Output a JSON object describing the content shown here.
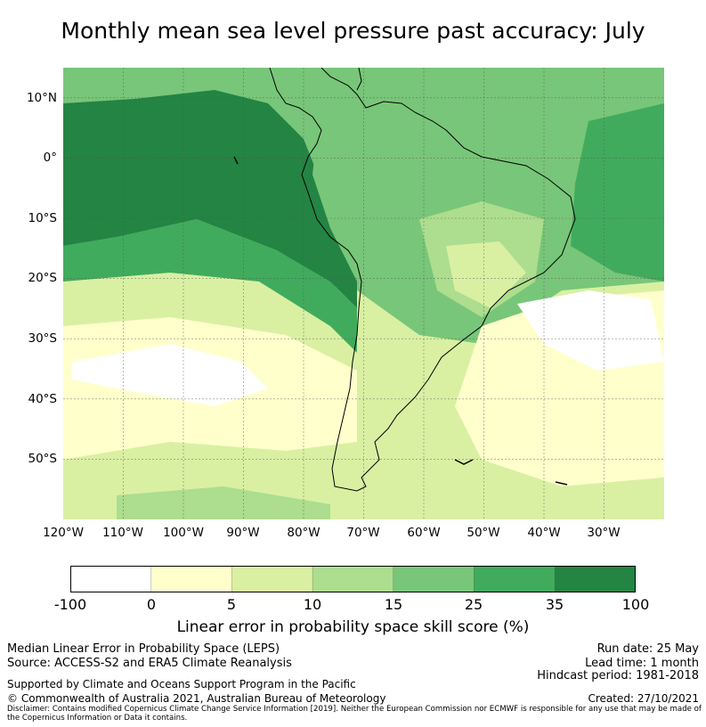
{
  "title": "Monthly mean sea level pressure past accuracy: July",
  "map": {
    "lat_labels": [
      "10°N",
      "0°",
      "10°S",
      "20°S",
      "30°S",
      "40°S",
      "50°S"
    ],
    "lon_labels": [
      "120°W",
      "110°W",
      "100°W",
      "90°W",
      "80°W",
      "70°W",
      "60°W",
      "50°W",
      "40°W",
      "30°W"
    ],
    "lat_values": [
      10,
      0,
      -10,
      -20,
      -30,
      -40,
      -50
    ],
    "lon_values": [
      -120,
      -110,
      -100,
      -90,
      -80,
      -70,
      -60,
      -50,
      -40,
      -30
    ],
    "extent": {
      "lon": [
        -120,
        -20
      ],
      "lat": [
        -60,
        15
      ]
    },
    "colors": {
      "-100_0": "#ffffff",
      "0_5": "#ffffcc",
      "5_10": "#d9f0a3",
      "10_15": "#addd8e",
      "15_25": "#78c679",
      "25_35": "#41ab5d",
      "35_100": "#238443"
    }
  },
  "colorbar": {
    "ticks": [
      "-100",
      "0",
      "5",
      "10",
      "15",
      "25",
      "35",
      "100"
    ],
    "colors": [
      "#ffffff",
      "#ffffcc",
      "#d9f0a3",
      "#addd8e",
      "#78c679",
      "#41ab5d",
      "#238443"
    ],
    "label": "Linear error in probability space skill score (%)"
  },
  "footer": {
    "line1": "Median Linear Error in Probability Space (LEPS)",
    "line2": "Source: ACCESS-S2 and ERA5 Climate Reanalysis",
    "line3": "Supported by Climate and Oceans Support Program in the Pacific",
    "line4": "© Commonwealth of Australia 2021, Australian Bureau of Meteorology",
    "run_date": "Run date: 25 May",
    "lead_time": "Lead time: 1 month",
    "hindcast": "Hindcast period: 1981-2018",
    "created": "Created: 27/10/2021",
    "disclaimer": "Disclaimer: Contains modified Copernicus Climate Change Service Information [2019]. Neither the European Commission nor ECMWF is responsible for any use that may be made of the Copernicus Information or Data it contains."
  }
}
